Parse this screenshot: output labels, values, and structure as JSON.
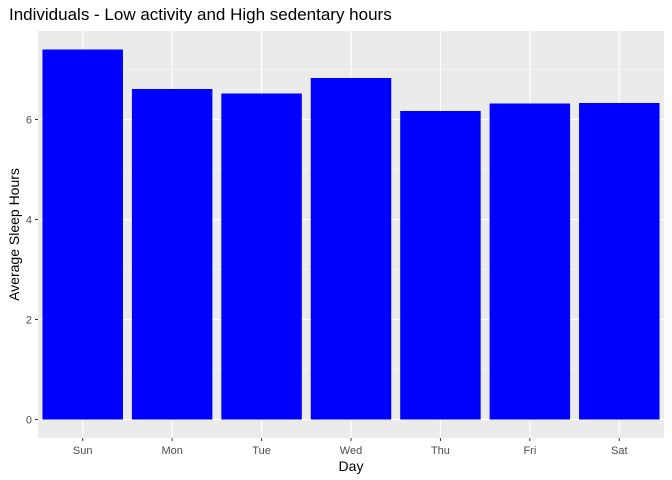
{
  "chart_data": {
    "type": "bar",
    "title": "Individuals - Low activity and High sedentary hours",
    "xlabel": "Day",
    "ylabel": "Average Sleep Hours",
    "categories": [
      "Sun",
      "Mon",
      "Tue",
      "Wed",
      "Thu",
      "Fri",
      "Sat"
    ],
    "values": [
      7.4,
      6.61,
      6.52,
      6.83,
      6.17,
      6.32,
      6.33
    ],
    "ylim": [
      -0.37,
      7.77
    ],
    "yticks": [
      0,
      2,
      4,
      6
    ],
    "grid": true,
    "bar_color": "#0000ff",
    "panel_color": "#ebebeb",
    "grid_color": "#ffffff"
  }
}
